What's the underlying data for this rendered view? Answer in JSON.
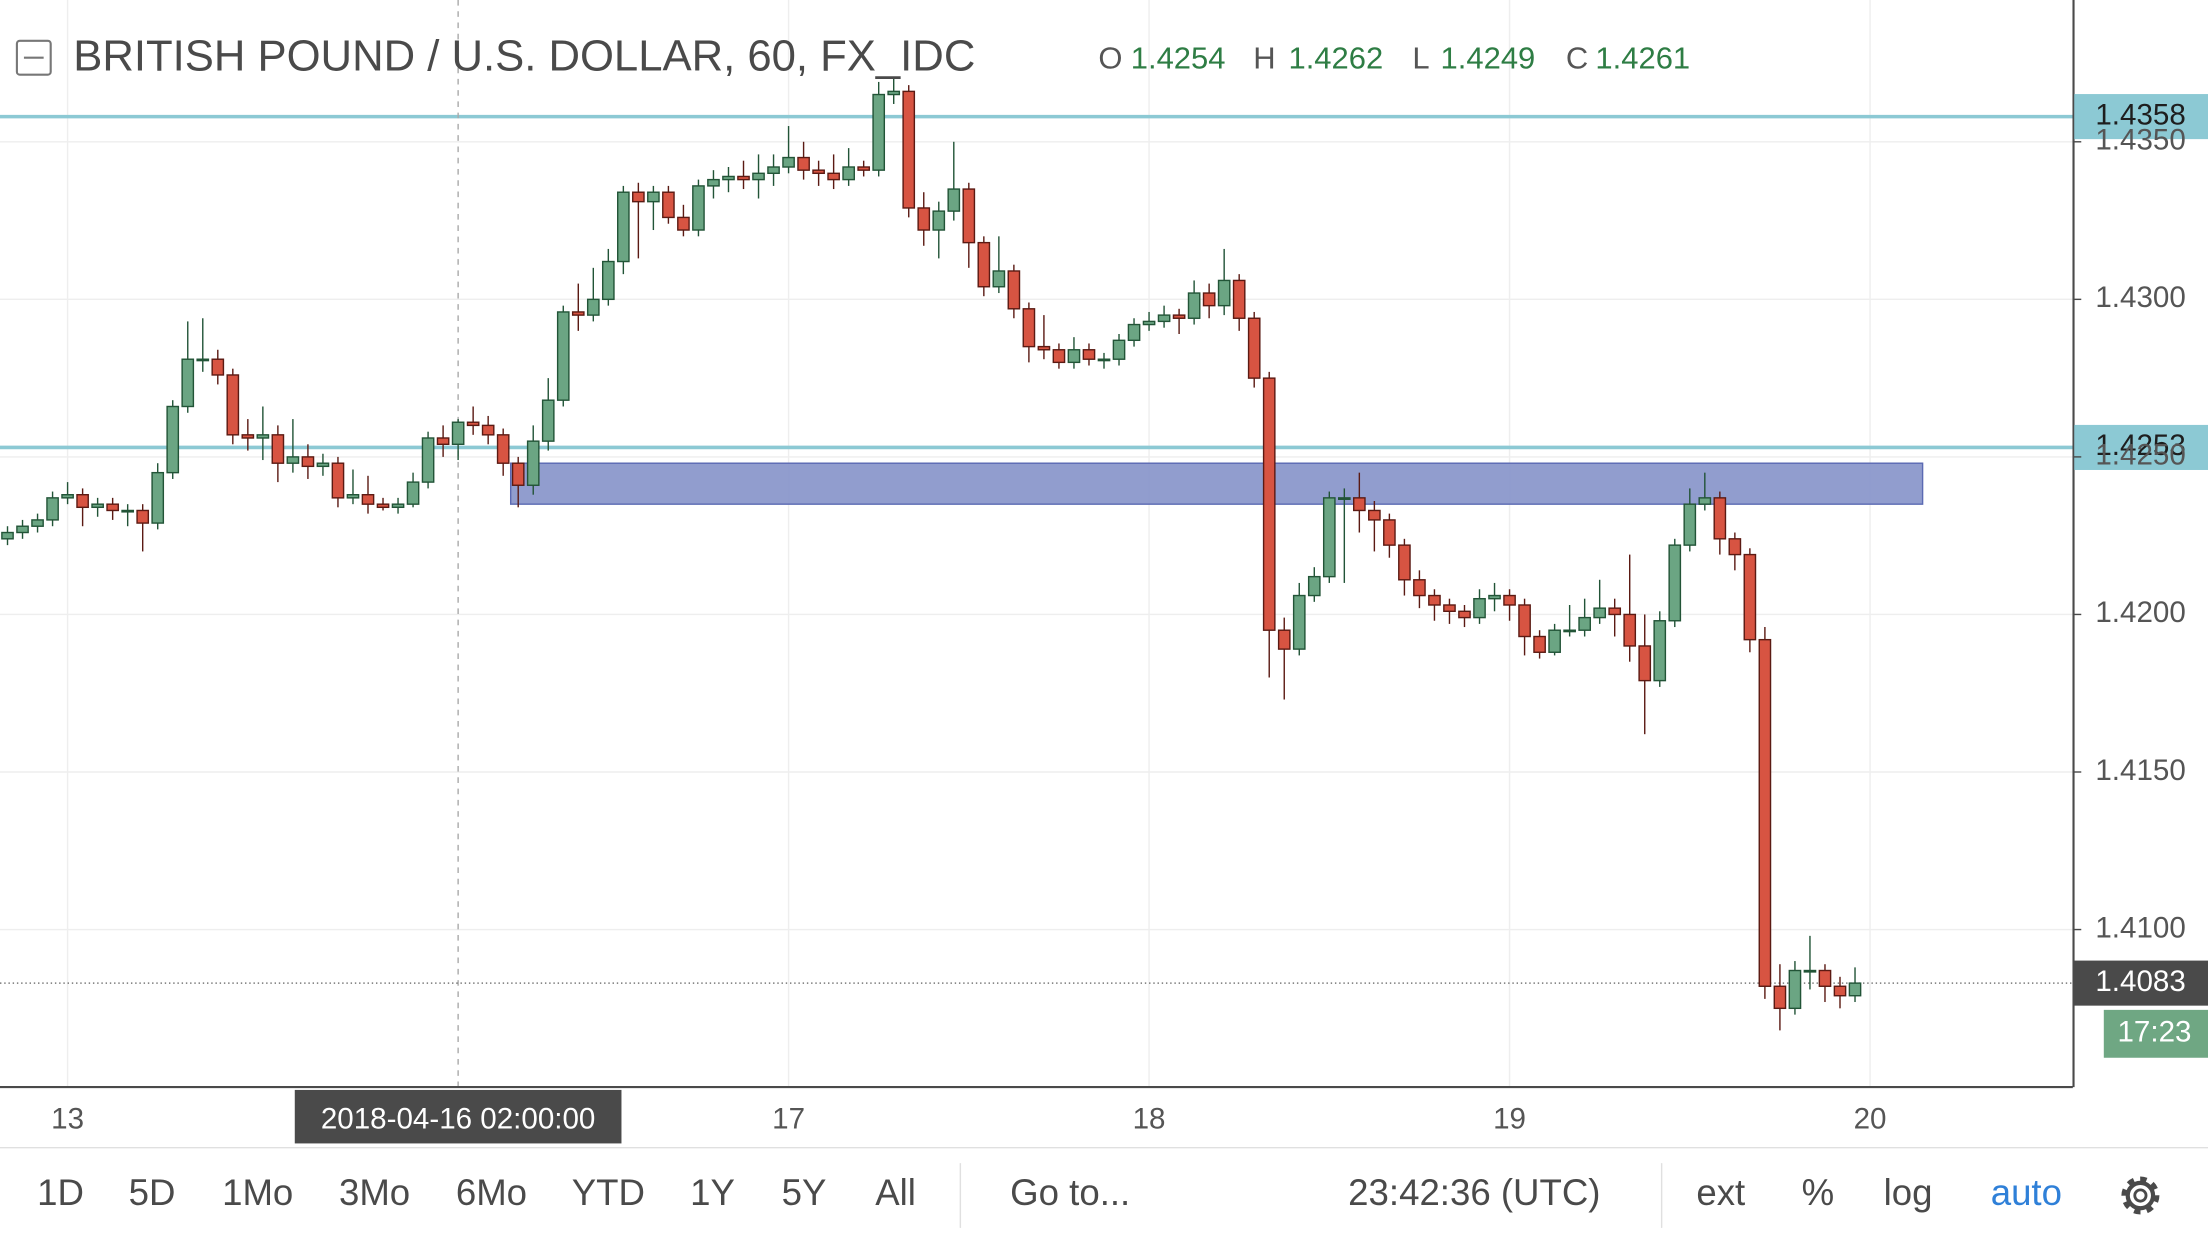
{
  "header": {
    "title": "BRITISH POUND / U.S. DOLLAR, 60, FX_IDC",
    "ohlc": [
      {
        "key": "O",
        "value": "1.4254"
      },
      {
        "key": "H",
        "value": "1.4262"
      },
      {
        "key": "L",
        "value": "1.4249"
      },
      {
        "key": "C",
        "value": "1.4261"
      }
    ]
  },
  "chart_data": {
    "type": "candlestick",
    "categories": [
      null,
      null,
      null,
      null,
      "13",
      null,
      null,
      null,
      null,
      null,
      null,
      null,
      null,
      null,
      null,
      null,
      null,
      null,
      null,
      null,
      null,
      null,
      null,
      null,
      null,
      null,
      null,
      null,
      null,
      null,
      null,
      null,
      null,
      null,
      null,
      null,
      null,
      null,
      null,
      null,
      null,
      null,
      null,
      null,
      null,
      null,
      null,
      null,
      null,
      null,
      null,
      null,
      "17",
      null,
      null,
      null,
      null,
      null,
      null,
      null,
      null,
      null,
      null,
      null,
      null,
      null,
      null,
      null,
      null,
      null,
      null,
      null,
      null,
      null,
      null,
      null,
      "18",
      null,
      null,
      null,
      null,
      null,
      null,
      null,
      null,
      null,
      null,
      null,
      null,
      null,
      null,
      null,
      null,
      null,
      null,
      null,
      null,
      null,
      null,
      null,
      "19",
      null,
      null,
      null,
      null,
      null,
      null,
      null,
      null,
      null,
      null,
      null,
      null,
      null,
      null,
      null,
      null,
      null,
      null,
      null,
      null,
      null,
      null,
      null,
      "20"
    ],
    "open": [
      1.4224,
      1.4226,
      1.4228,
      1.423,
      1.4237,
      1.4238,
      1.4234,
      1.4235,
      1.4233,
      1.4233,
      1.4229,
      1.4245,
      1.4266,
      1.4281,
      1.4281,
      1.4276,
      1.4257,
      1.4256,
      1.4257,
      1.4248,
      1.425,
      1.4247,
      1.4248,
      1.4237,
      1.4238,
      1.4235,
      1.4234,
      1.4235,
      1.4242,
      1.4256,
      1.4254,
      1.4261,
      1.426,
      1.4257,
      1.4248,
      1.4241,
      1.4255,
      1.4268,
      1.4296,
      1.4295,
      1.43,
      1.4312,
      1.4334,
      1.4331,
      1.4334,
      1.4326,
      1.4322,
      1.4336,
      1.4338,
      1.4339,
      1.4338,
      1.434,
      1.4342,
      1.4345,
      1.4341,
      1.434,
      1.4338,
      1.4342,
      1.4341,
      1.4365,
      1.4366,
      1.4329,
      1.4322,
      1.4328,
      1.4335,
      1.4318,
      1.4304,
      1.4309,
      1.4297,
      1.4285,
      1.4284,
      1.428,
      1.4284,
      1.4281,
      1.4281,
      1.4287,
      1.4292,
      1.4293,
      1.4295,
      1.4294,
      1.4302,
      1.4298,
      1.4306,
      1.4294,
      1.4275,
      1.4195,
      1.4189,
      1.4206,
      1.4212,
      1.4237,
      1.4237,
      1.4233,
      1.423,
      1.4222,
      1.4211,
      1.4206,
      1.4203,
      1.4201,
      1.4199,
      1.4205,
      1.4206,
      1.4203,
      1.4193,
      1.4188,
      1.4195,
      1.4195,
      1.4199,
      1.4202,
      1.42,
      1.419,
      1.4179,
      1.4198,
      1.4222,
      1.4235,
      1.4237,
      1.4224,
      1.4219,
      1.4192,
      1.4082,
      1.4075,
      1.4087,
      1.4087,
      1.4082,
      1.4079,
      null
    ],
    "high": [
      1.4228,
      1.423,
      1.4232,
      1.4239,
      1.4242,
      1.424,
      1.4237,
      1.4237,
      1.4235,
      1.4235,
      1.4248,
      1.4268,
      1.4293,
      1.4294,
      1.4284,
      1.4278,
      1.4262,
      1.4266,
      1.426,
      1.4262,
      1.4254,
      1.4251,
      1.425,
      1.4246,
      1.4244,
      1.4237,
      1.4237,
      1.4245,
      1.4258,
      1.426,
      1.4262,
      1.4266,
      1.4263,
      1.4259,
      1.425,
      1.426,
      1.4275,
      1.4298,
      1.4305,
      1.431,
      1.4316,
      1.4336,
      1.4337,
      1.4336,
      1.4336,
      1.433,
      1.4338,
      1.4341,
      1.4342,
      1.4344,
      1.4346,
      1.4346,
      1.4355,
      1.435,
      1.4344,
      1.4346,
      1.4348,
      1.4344,
      1.4369,
      1.437,
      1.4368,
      1.4334,
      1.4331,
      1.435,
      1.4337,
      1.432,
      1.432,
      1.4311,
      1.4299,
      1.4295,
      1.4286,
      1.4288,
      1.4286,
      1.4283,
      1.4289,
      1.4294,
      1.4296,
      1.4298,
      1.4297,
      1.4306,
      1.4305,
      1.4316,
      1.4308,
      1.4296,
      1.4277,
      1.4199,
      1.421,
      1.4215,
      1.4239,
      1.424,
      1.4245,
      1.4236,
      1.4232,
      1.4224,
      1.4214,
      1.4208,
      1.4205,
      1.4203,
      1.4208,
      1.421,
      1.4208,
      1.4205,
      1.4195,
      1.4197,
      1.4203,
      1.4205,
      1.4211,
      1.4205,
      1.4219,
      1.42,
      1.4201,
      1.4224,
      1.424,
      1.4245,
      1.4239,
      1.4226,
      1.4221,
      1.4196,
      1.4089,
      1.409,
      1.4098,
      1.4089,
      1.4085,
      1.4088,
      null
    ],
    "low": [
      1.4222,
      1.4224,
      1.4226,
      1.4228,
      1.4235,
      1.4228,
      1.4231,
      1.423,
      1.4228,
      1.422,
      1.4227,
      1.4243,
      1.4264,
      1.4277,
      1.4273,
      1.4254,
      1.4252,
      1.4249,
      1.4242,
      1.4245,
      1.4243,
      1.4244,
      1.4234,
      1.4235,
      1.4232,
      1.4233,
      1.4232,
      1.4234,
      1.424,
      1.425,
      1.4249,
      1.4257,
      1.4254,
      1.4244,
      1.4234,
      1.4238,
      1.4252,
      1.4266,
      1.429,
      1.4293,
      1.4298,
      1.4308,
      1.4313,
      1.4322,
      1.4324,
      1.432,
      1.432,
      1.4332,
      1.4334,
      1.4335,
      1.4332,
      1.4336,
      1.434,
      1.4338,
      1.4336,
      1.4335,
      1.4336,
      1.4339,
      1.4339,
      1.4362,
      1.4326,
      1.4317,
      1.4313,
      1.4325,
      1.431,
      1.4301,
      1.4302,
      1.4294,
      1.428,
      1.4281,
      1.4278,
      1.4278,
      1.4279,
      1.4278,
      1.4279,
      1.4285,
      1.429,
      1.4291,
      1.4289,
      1.4292,
      1.4294,
      1.4295,
      1.429,
      1.4272,
      1.418,
      1.4173,
      1.4187,
      1.4204,
      1.421,
      1.421,
      1.4226,
      1.422,
      1.4218,
      1.4206,
      1.4202,
      1.4198,
      1.4197,
      1.4196,
      1.4197,
      1.4201,
      1.4198,
      1.4187,
      1.4186,
      1.4187,
      1.4193,
      1.4193,
      1.4197,
      1.4193,
      1.4185,
      1.4162,
      1.4177,
      1.4196,
      1.422,
      1.4233,
      1.4219,
      1.4214,
      1.4188,
      1.4078,
      1.4068,
      1.4073,
      1.4081,
      1.4077,
      1.4075,
      1.4077,
      null
    ],
    "close": [
      1.4226,
      1.4228,
      1.423,
      1.4237,
      1.4238,
      1.4234,
      1.4235,
      1.4233,
      1.4233,
      1.4229,
      1.4245,
      1.4266,
      1.4281,
      1.4281,
      1.4276,
      1.4257,
      1.4256,
      1.4257,
      1.4248,
      1.425,
      1.4247,
      1.4248,
      1.4237,
      1.4238,
      1.4235,
      1.4234,
      1.4235,
      1.4242,
      1.4256,
      1.4254,
      1.4261,
      1.426,
      1.4257,
      1.4248,
      1.4241,
      1.4255,
      1.4268,
      1.4296,
      1.4295,
      1.43,
      1.4312,
      1.4334,
      1.4331,
      1.4334,
      1.4326,
      1.4322,
      1.4336,
      1.4338,
      1.4339,
      1.4338,
      1.434,
      1.4342,
      1.4345,
      1.4341,
      1.434,
      1.4338,
      1.4342,
      1.4341,
      1.4365,
      1.4366,
      1.4329,
      1.4322,
      1.4328,
      1.4335,
      1.4318,
      1.4304,
      1.4309,
      1.4297,
      1.4285,
      1.4284,
      1.428,
      1.4284,
      1.4281,
      1.4281,
      1.4287,
      1.4292,
      1.4293,
      1.4295,
      1.4294,
      1.4302,
      1.4298,
      1.4306,
      1.4294,
      1.4275,
      1.4195,
      1.4189,
      1.4206,
      1.4212,
      1.4237,
      1.4237,
      1.4233,
      1.423,
      1.4222,
      1.4211,
      1.4206,
      1.4203,
      1.4201,
      1.4199,
      1.4205,
      1.4206,
      1.4203,
      1.4193,
      1.4188,
      1.4195,
      1.4195,
      1.4199,
      1.4202,
      1.42,
      1.419,
      1.4179,
      1.4198,
      1.4222,
      1.4235,
      1.4237,
      1.4224,
      1.4219,
      1.4192,
      1.4082,
      1.4075,
      1.4087,
      1.4087,
      1.4082,
      1.4079,
      1.4083,
      null
    ],
    "up_color": "#6ba583",
    "down_color": "#d75442",
    "ylim": [
      1.405,
      1.4395
    ],
    "yticks": [
      {
        "value": 1.41,
        "label": "1.4100"
      },
      {
        "value": 1.415,
        "label": "1.4150"
      },
      {
        "value": 1.42,
        "label": "1.4200"
      },
      {
        "value": 1.425,
        "label": "1.4250"
      },
      {
        "value": 1.43,
        "label": "1.4300"
      },
      {
        "value": 1.435,
        "label": "1.4350"
      }
    ],
    "grid": true,
    "hlines": [
      {
        "value": 1.4358,
        "color": "#8cc9d4"
      },
      {
        "value": 1.4253,
        "color": "#8cc9d4"
      }
    ],
    "zone": {
      "top": 1.4248,
      "bottom": 1.4235,
      "color": "#8592c9"
    },
    "last_price": 1.4083,
    "countdown": "17:23",
    "crosshair_label": "2018-04-16 02:00:00"
  },
  "toolbar": {
    "ranges": [
      "1D",
      "5D",
      "1Mo",
      "3Mo",
      "6Mo",
      "YTD",
      "1Y",
      "5Y",
      "All"
    ],
    "goto": "Go to...",
    "clock": "23:42:36 (UTC)",
    "options": [
      "ext",
      "%",
      "log",
      "auto"
    ]
  }
}
